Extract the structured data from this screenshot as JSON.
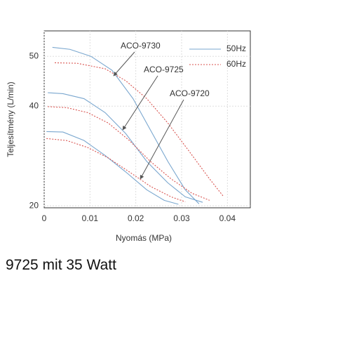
{
  "chart_data": {
    "type": "line",
    "xlabel": "Nyomás (MPa)",
    "ylabel": "Teljesítmény (L/min)",
    "xlim": [
      0,
      0.045
    ],
    "ylim": [
      19.6,
      55.1
    ],
    "xticks": [
      0,
      0.01,
      0.02,
      0.03,
      0.04
    ],
    "yticks": [
      50,
      40,
      20
    ],
    "legend": [
      {
        "name": "50Hz",
        "color": "#7aa7cf",
        "dash": false
      },
      {
        "name": "60Hz",
        "color": "#d9534f",
        "dash": true
      }
    ],
    "models": [
      {
        "name": "ACO-9730",
        "series": [
          {
            "x": [
              0.0018,
              0.0056,
              0.0102,
              0.0148,
              0.0194,
              0.0232,
              0.027,
              0.0308,
              0.0338
            ],
            "values": [
              51.8,
              51.4,
              50,
              47.2,
              41.5,
              35.2,
              28.9,
              23.2,
              20.4
            ]
          },
          {
            "x": [
              0.0023,
              0.0072,
              0.0133,
              0.0178,
              0.0224,
              0.027,
              0.0316,
              0.0361,
              0.0392
            ],
            "values": [
              48.7,
              48.6,
              47.5,
              45.1,
              41.5,
              36.6,
              31.0,
              25.4,
              21.8
            ]
          }
        ]
      },
      {
        "name": "ACO-9725",
        "series": [
          {
            "x": [
              0.0008,
              0.0041,
              0.0087,
              0.0133,
              0.0178,
              0.0224,
              0.027,
              0.0308,
              0.0346
            ],
            "values": [
              42.7,
              42.5,
              41.5,
              38.7,
              34.5,
              28.9,
              24.6,
              21.8,
              20.7
            ]
          },
          {
            "x": [
              0.0008,
              0.0049,
              0.0095,
              0.014,
              0.0186,
              0.0232,
              0.0277,
              0.0323,
              0.0361
            ],
            "values": [
              39.9,
              39.7,
              38.7,
              36.6,
              33.1,
              28.9,
              25.4,
              22.5,
              21.1
            ]
          }
        ]
      },
      {
        "name": "ACO-9720",
        "series": [
          {
            "x": [
              0.0005,
              0.0041,
              0.0087,
              0.0133,
              0.0178,
              0.0224,
              0.0262,
              0.0293
            ],
            "values": [
              34.9,
              34.8,
              33.1,
              30.1,
              26.8,
              23.2,
              21.1,
              20.3
            ]
          },
          {
            "x": [
              0.0005,
              0.0049,
              0.0095,
              0.014,
              0.0186,
              0.0232,
              0.0277,
              0.0308
            ],
            "values": [
              33.5,
              33.1,
              31.7,
              29.6,
              26.8,
              23.9,
              21.8,
              20.8
            ]
          }
        ]
      }
    ]
  },
  "caption": "9725 mit 35 Watt"
}
